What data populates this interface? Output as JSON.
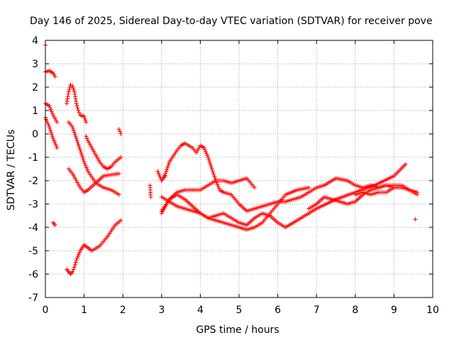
{
  "chart_data": {
    "type": "scatter",
    "title": "Day 146 of 2025, Sidereal Day-to-day VTEC variation (SDTVAR) for receiver pove",
    "xlabel": "GPS time / hours",
    "ylabel": "SDTVAR / TECUs",
    "xlim": [
      0,
      10
    ],
    "ylim": [
      -7,
      4
    ],
    "xticks": [
      "0",
      "1",
      "2",
      "3",
      "4",
      "5",
      "6",
      "7",
      "8",
      "9",
      "10"
    ],
    "yticks": [
      "-7",
      "-6",
      "-5",
      "-4",
      "-3",
      "-2",
      "-1",
      "0",
      "1",
      "2",
      "3",
      "4"
    ],
    "grid": true,
    "legend": "none",
    "marker": "+",
    "color": "#ff0000",
    "series": [
      {
        "x": [
          0.0,
          0.1,
          0.2,
          0.25
        ],
        "y": [
          2.65,
          2.7,
          2.6,
          2.45
        ]
      },
      {
        "x": [
          0.0,
          0.1,
          0.2,
          0.3
        ],
        "y": [
          1.3,
          1.2,
          0.8,
          0.5
        ]
      },
      {
        "x": [
          0.0,
          0.1,
          0.2,
          0.3
        ],
        "y": [
          0.7,
          0.3,
          -0.2,
          -0.6
        ]
      },
      {
        "x": [
          0.55,
          0.6,
          0.65,
          0.7,
          0.75,
          0.8,
          0.85,
          0.9,
          1.0,
          1.05
        ],
        "y": [
          1.3,
          1.8,
          2.1,
          2.05,
          1.8,
          1.3,
          1.0,
          0.8,
          0.75,
          0.5
        ]
      },
      {
        "x": [
          0.6,
          0.7,
          0.8,
          0.9,
          1.0,
          1.1,
          1.3,
          1.5,
          1.7,
          1.9
        ],
        "y": [
          0.5,
          0.3,
          -0.2,
          -0.7,
          -1.2,
          -1.6,
          -2.1,
          -2.3,
          -2.4,
          -2.6
        ]
      },
      {
        "x": [
          1.05,
          1.1,
          1.2,
          1.3,
          1.4,
          1.5,
          1.6,
          1.7,
          1.8,
          1.95
        ],
        "y": [
          -0.1,
          -0.3,
          -0.6,
          -0.9,
          -1.2,
          -1.4,
          -1.5,
          -1.4,
          -1.2,
          -1.0
        ]
      },
      {
        "x": [
          0.6,
          0.7,
          0.8,
          0.9,
          1.0,
          1.1,
          1.3,
          1.5,
          1.7,
          1.9
        ],
        "y": [
          -1.5,
          -1.7,
          -2.0,
          -2.3,
          -2.5,
          -2.4,
          -2.1,
          -1.8,
          -1.75,
          -1.7
        ]
      },
      {
        "x": [
          0.55,
          0.6,
          0.65,
          0.7,
          0.75,
          0.8,
          0.9,
          1.0,
          1.2,
          1.4,
          1.6,
          1.8,
          1.95
        ],
        "y": [
          -5.8,
          -5.9,
          -6.0,
          -5.9,
          -5.7,
          -5.4,
          -5.0,
          -4.75,
          -5.0,
          -4.8,
          -4.4,
          -3.9,
          -3.7
        ]
      },
      {
        "x": [
          0.2,
          0.25
        ],
        "y": [
          -3.8,
          -3.9
        ]
      },
      {
        "x": [
          1.9,
          1.95
        ],
        "y": [
          0.2,
          0.0
        ]
      },
      {
        "x": [
          0.0
        ],
        "y": [
          3.8
        ]
      },
      {
        "x": [
          2.7,
          2.72
        ],
        "y": [
          -2.2,
          -2.7
        ]
      },
      {
        "x": [
          2.9,
          3.0,
          3.1
        ],
        "y": [
          -1.6,
          -2.0,
          -1.8
        ]
      },
      {
        "x": [
          3.0,
          3.2,
          3.4,
          3.6,
          3.8,
          4.0,
          4.2,
          4.4,
          4.6,
          4.8,
          5.0,
          5.2,
          5.4
        ],
        "y": [
          -3.3,
          -2.8,
          -2.5,
          -2.4,
          -2.4,
          -2.4,
          -2.2,
          -2.0,
          -2.0,
          -2.1,
          -2.0,
          -1.9,
          -2.3
        ]
      },
      {
        "x": [
          3.0,
          3.2,
          3.4,
          3.6,
          3.8,
          4.0,
          4.2,
          4.4,
          4.6,
          4.8,
          5.0,
          5.2,
          5.4,
          5.6,
          5.8,
          6.0,
          6.2,
          6.5,
          6.8
        ],
        "y": [
          -3.4,
          -2.8,
          -2.6,
          -2.8,
          -3.1,
          -3.4,
          -3.6,
          -3.7,
          -3.8,
          -3.9,
          -4.0,
          -4.1,
          -4.0,
          -3.8,
          -3.4,
          -3.0,
          -2.6,
          -2.4,
          -2.3
        ]
      },
      {
        "x": [
          3.0,
          3.2,
          3.4,
          3.6,
          3.8,
          4.0,
          4.2,
          4.4,
          4.6,
          4.8,
          5.0,
          5.2,
          5.4,
          5.6,
          5.8,
          6.0,
          6.2,
          6.5,
          7.0,
          7.5,
          8.0,
          8.5,
          9.0,
          9.3
        ],
        "y": [
          -2.7,
          -2.9,
          -3.1,
          -3.2,
          -3.3,
          -3.4,
          -3.6,
          -3.5,
          -3.4,
          -3.6,
          -3.8,
          -3.9,
          -3.6,
          -3.4,
          -3.5,
          -3.8,
          -4.0,
          -3.7,
          -3.2,
          -2.8,
          -2.5,
          -2.2,
          -1.8,
          -1.3
        ]
      },
      {
        "x": [
          3.0,
          3.1,
          3.2,
          3.4,
          3.5,
          3.6,
          3.8,
          3.9,
          4.0,
          4.1,
          4.2,
          4.3,
          4.4,
          4.5,
          4.6,
          4.8,
          5.0,
          5.2,
          5.4,
          5.6,
          5.8,
          6.0,
          6.2,
          6.4,
          6.6,
          6.8,
          7.0,
          7.2,
          7.5,
          7.8,
          8.0,
          8.2,
          8.4,
          8.6,
          8.8,
          9.0,
          9.2,
          9.4,
          9.6
        ],
        "y": [
          -2.0,
          -1.7,
          -1.2,
          -0.7,
          -0.5,
          -0.4,
          -0.6,
          -0.8,
          -0.5,
          -0.6,
          -1.0,
          -1.5,
          -2.0,
          -2.4,
          -2.5,
          -2.6,
          -3.0,
          -3.3,
          -3.2,
          -3.1,
          -3.0,
          -2.9,
          -2.9,
          -2.8,
          -2.7,
          -2.5,
          -2.3,
          -2.2,
          -1.9,
          -2.0,
          -2.2,
          -2.3,
          -2.2,
          -2.3,
          -2.2,
          -2.2,
          -2.2,
          -2.4,
          -2.5
        ]
      },
      {
        "x": [
          6.8,
          7.0,
          7.2,
          7.4,
          7.6,
          7.8,
          8.0,
          8.2,
          8.4,
          8.6,
          8.8,
          9.0,
          9.2,
          9.4,
          9.6
        ],
        "y": [
          -3.2,
          -3.0,
          -2.7,
          -2.8,
          -2.9,
          -3.0,
          -2.9,
          -2.6,
          -2.4,
          -2.3,
          -2.2,
          -2.3,
          -2.3,
          -2.4,
          -2.6
        ]
      },
      {
        "x": [
          8.0,
          8.2,
          8.4,
          8.6,
          8.8,
          9.0
        ],
        "y": [
          -2.6,
          -2.5,
          -2.6,
          -2.5,
          -2.5,
          -2.3
        ]
      },
      {
        "x": [
          9.55
        ],
        "y": [
          -3.65
        ]
      }
    ]
  }
}
